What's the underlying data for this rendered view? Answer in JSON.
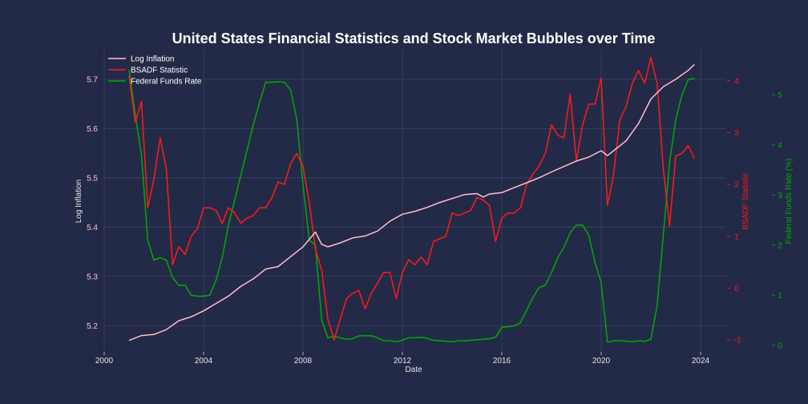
{
  "chart_data": {
    "type": "line",
    "title": "United States Financial Statistics and Stock Market Bubbles over Time",
    "xlabel": "Date",
    "xlim": [
      2000,
      2025
    ],
    "x_ticks": [
      "2000",
      "2004",
      "2008",
      "2012",
      "2016",
      "2020",
      "2024"
    ],
    "grid": true,
    "legend_position": "top-left",
    "axes": {
      "left": {
        "label": "Log Inflation",
        "ylim": [
          5.15,
          5.76
        ],
        "ticks": [
          "5.2",
          "5.3",
          "5.4",
          "5.5",
          "5.6",
          "5.7"
        ],
        "color": "#ffc0cb"
      },
      "right1": {
        "label": "BSADF Statistic",
        "ylim": [
          -1.2,
          4.6
        ],
        "ticks": [
          "−1",
          "0",
          "1",
          "2",
          "3",
          "4"
        ],
        "color": "#ff1a1a"
      },
      "right2": {
        "label": "Federal Funds Rate (%)",
        "ylim": [
          -0.1,
          5.9
        ],
        "ticks": [
          "0",
          "1",
          "2",
          "3",
          "4",
          "5"
        ],
        "color": "#00aa00"
      }
    },
    "series": [
      {
        "name": "Log Inflation",
        "axis": "left",
        "color": "#ffc0cb",
        "points": [
          [
            2001.0,
            5.17
          ],
          [
            2001.5,
            5.18
          ],
          [
            2002.0,
            5.182
          ],
          [
            2002.5,
            5.192
          ],
          [
            2003.0,
            5.21
          ],
          [
            2003.5,
            5.218
          ],
          [
            2004.0,
            5.23
          ],
          [
            2004.5,
            5.245
          ],
          [
            2005.0,
            5.26
          ],
          [
            2005.5,
            5.28
          ],
          [
            2006.0,
            5.295
          ],
          [
            2006.5,
            5.315
          ],
          [
            2007.0,
            5.32
          ],
          [
            2007.5,
            5.34
          ],
          [
            2008.0,
            5.36
          ],
          [
            2008.5,
            5.39
          ],
          [
            2008.75,
            5.365
          ],
          [
            2009.0,
            5.36
          ],
          [
            2009.5,
            5.368
          ],
          [
            2010.0,
            5.378
          ],
          [
            2010.5,
            5.382
          ],
          [
            2011.0,
            5.392
          ],
          [
            2011.5,
            5.412
          ],
          [
            2012.0,
            5.426
          ],
          [
            2012.5,
            5.432
          ],
          [
            2013.0,
            5.44
          ],
          [
            2013.5,
            5.45
          ],
          [
            2014.0,
            5.458
          ],
          [
            2014.5,
            5.466
          ],
          [
            2015.0,
            5.468
          ],
          [
            2015.25,
            5.461
          ],
          [
            2015.5,
            5.467
          ],
          [
            2016.0,
            5.47
          ],
          [
            2016.5,
            5.48
          ],
          [
            2017.0,
            5.49
          ],
          [
            2017.5,
            5.5
          ],
          [
            2018.0,
            5.512
          ],
          [
            2018.5,
            5.523
          ],
          [
            2019.0,
            5.534
          ],
          [
            2019.5,
            5.542
          ],
          [
            2020.0,
            5.555
          ],
          [
            2020.25,
            5.545
          ],
          [
            2020.5,
            5.555
          ],
          [
            2021.0,
            5.575
          ],
          [
            2021.5,
            5.61
          ],
          [
            2022.0,
            5.66
          ],
          [
            2022.5,
            5.685
          ],
          [
            2023.0,
            5.7
          ],
          [
            2023.5,
            5.718
          ],
          [
            2023.75,
            5.73
          ]
        ]
      },
      {
        "name": "BSADF Statistic",
        "axis": "right1",
        "color": "#ff1a1a",
        "points": [
          [
            2001.0,
            4.1
          ],
          [
            2001.25,
            3.2
          ],
          [
            2001.5,
            3.6
          ],
          [
            2001.75,
            1.55
          ],
          [
            2002.0,
            2.1
          ],
          [
            2002.25,
            2.9
          ],
          [
            2002.5,
            2.3
          ],
          [
            2002.75,
            0.45
          ],
          [
            2003.0,
            0.8
          ],
          [
            2003.25,
            0.65
          ],
          [
            2003.5,
            1.0
          ],
          [
            2003.75,
            1.15
          ],
          [
            2004.0,
            1.55
          ],
          [
            2004.25,
            1.55
          ],
          [
            2004.5,
            1.5
          ],
          [
            2004.75,
            1.25
          ],
          [
            2005.0,
            1.55
          ],
          [
            2005.25,
            1.45
          ],
          [
            2005.5,
            1.25
          ],
          [
            2005.75,
            1.35
          ],
          [
            2006.0,
            1.4
          ],
          [
            2006.25,
            1.55
          ],
          [
            2006.5,
            1.55
          ],
          [
            2006.75,
            1.75
          ],
          [
            2007.0,
            2.05
          ],
          [
            2007.25,
            2.0
          ],
          [
            2007.5,
            2.4
          ],
          [
            2007.75,
            2.6
          ],
          [
            2008.0,
            2.35
          ],
          [
            2008.25,
            1.65
          ],
          [
            2008.5,
            0.75
          ],
          [
            2008.75,
            0.35
          ],
          [
            2009.0,
            -0.6
          ],
          [
            2009.25,
            -1.0
          ],
          [
            2009.5,
            -0.6
          ],
          [
            2009.75,
            -0.2
          ],
          [
            2010.0,
            -0.1
          ],
          [
            2010.25,
            -0.05
          ],
          [
            2010.5,
            -0.4
          ],
          [
            2010.75,
            -0.1
          ],
          [
            2011.0,
            0.1
          ],
          [
            2011.25,
            0.3
          ],
          [
            2011.5,
            0.3
          ],
          [
            2011.75,
            -0.2
          ],
          [
            2012.0,
            0.3
          ],
          [
            2012.25,
            0.55
          ],
          [
            2012.5,
            0.45
          ],
          [
            2012.75,
            0.6
          ],
          [
            2013.0,
            0.45
          ],
          [
            2013.25,
            0.9
          ],
          [
            2013.5,
            0.95
          ],
          [
            2013.75,
            1.0
          ],
          [
            2014.0,
            1.45
          ],
          [
            2014.25,
            1.4
          ],
          [
            2014.5,
            1.45
          ],
          [
            2014.75,
            1.5
          ],
          [
            2015.0,
            1.75
          ],
          [
            2015.25,
            1.7
          ],
          [
            2015.5,
            1.6
          ],
          [
            2015.75,
            0.9
          ],
          [
            2016.0,
            1.35
          ],
          [
            2016.25,
            1.45
          ],
          [
            2016.5,
            1.45
          ],
          [
            2016.75,
            1.55
          ],
          [
            2017.0,
            2.0
          ],
          [
            2017.25,
            2.2
          ],
          [
            2017.5,
            2.35
          ],
          [
            2017.75,
            2.6
          ],
          [
            2018.0,
            3.15
          ],
          [
            2018.25,
            2.95
          ],
          [
            2018.5,
            2.9
          ],
          [
            2018.75,
            3.75
          ],
          [
            2019.0,
            2.45
          ],
          [
            2019.25,
            3.15
          ],
          [
            2019.5,
            3.55
          ],
          [
            2019.75,
            3.55
          ],
          [
            2020.0,
            4.05
          ],
          [
            2020.25,
            1.6
          ],
          [
            2020.5,
            2.2
          ],
          [
            2020.75,
            3.25
          ],
          [
            2021.0,
            3.5
          ],
          [
            2021.25,
            3.95
          ],
          [
            2021.5,
            4.2
          ],
          [
            2021.75,
            3.95
          ],
          [
            2022.0,
            4.45
          ],
          [
            2022.25,
            3.95
          ],
          [
            2022.5,
            2.3
          ],
          [
            2022.75,
            1.2
          ],
          [
            2023.0,
            2.55
          ],
          [
            2023.25,
            2.6
          ],
          [
            2023.5,
            2.75
          ],
          [
            2023.75,
            2.5
          ]
        ]
      },
      {
        "name": "Federal Funds Rate",
        "axis": "right2",
        "color": "#00aa00",
        "points": [
          [
            2001.0,
            5.5
          ],
          [
            2001.25,
            4.6
          ],
          [
            2001.5,
            3.8
          ],
          [
            2001.75,
            2.1
          ],
          [
            2002.0,
            1.7
          ],
          [
            2002.25,
            1.75
          ],
          [
            2002.5,
            1.7
          ],
          [
            2002.75,
            1.35
          ],
          [
            2003.0,
            1.2
          ],
          [
            2003.25,
            1.2
          ],
          [
            2003.5,
            1.0
          ],
          [
            2003.75,
            0.98
          ],
          [
            2004.0,
            0.98
          ],
          [
            2004.25,
            1.0
          ],
          [
            2004.5,
            1.3
          ],
          [
            2004.75,
            1.75
          ],
          [
            2005.0,
            2.4
          ],
          [
            2005.25,
            2.9
          ],
          [
            2005.5,
            3.4
          ],
          [
            2005.75,
            3.9
          ],
          [
            2006.0,
            4.4
          ],
          [
            2006.25,
            4.85
          ],
          [
            2006.5,
            5.25
          ],
          [
            2006.75,
            5.25
          ],
          [
            2007.0,
            5.26
          ],
          [
            2007.25,
            5.25
          ],
          [
            2007.5,
            5.1
          ],
          [
            2007.75,
            4.5
          ],
          [
            2008.0,
            3.2
          ],
          [
            2008.25,
            2.1
          ],
          [
            2008.5,
            2.0
          ],
          [
            2008.75,
            0.5
          ],
          [
            2009.0,
            0.15
          ],
          [
            2009.25,
            0.18
          ],
          [
            2009.5,
            0.15
          ],
          [
            2009.75,
            0.12
          ],
          [
            2010.0,
            0.13
          ],
          [
            2010.25,
            0.19
          ],
          [
            2010.5,
            0.19
          ],
          [
            2010.75,
            0.19
          ],
          [
            2011.0,
            0.15
          ],
          [
            2011.25,
            0.09
          ],
          [
            2011.5,
            0.09
          ],
          [
            2011.75,
            0.07
          ],
          [
            2012.0,
            0.1
          ],
          [
            2012.25,
            0.15
          ],
          [
            2012.5,
            0.15
          ],
          [
            2012.75,
            0.16
          ],
          [
            2013.0,
            0.14
          ],
          [
            2013.25,
            0.1
          ],
          [
            2013.5,
            0.09
          ],
          [
            2013.75,
            0.08
          ],
          [
            2014.0,
            0.07
          ],
          [
            2014.25,
            0.09
          ],
          [
            2014.5,
            0.09
          ],
          [
            2014.75,
            0.1
          ],
          [
            2015.0,
            0.11
          ],
          [
            2015.25,
            0.12
          ],
          [
            2015.5,
            0.13
          ],
          [
            2015.75,
            0.16
          ],
          [
            2016.0,
            0.36
          ],
          [
            2016.25,
            0.37
          ],
          [
            2016.5,
            0.39
          ],
          [
            2016.75,
            0.45
          ],
          [
            2017.0,
            0.7
          ],
          [
            2017.25,
            0.95
          ],
          [
            2017.5,
            1.15
          ],
          [
            2017.75,
            1.2
          ],
          [
            2018.0,
            1.45
          ],
          [
            2018.25,
            1.75
          ],
          [
            2018.5,
            1.95
          ],
          [
            2018.75,
            2.25
          ],
          [
            2019.0,
            2.4
          ],
          [
            2019.25,
            2.4
          ],
          [
            2019.5,
            2.2
          ],
          [
            2019.75,
            1.65
          ],
          [
            2020.0,
            1.25
          ],
          [
            2020.25,
            0.06
          ],
          [
            2020.5,
            0.09
          ],
          [
            2020.75,
            0.09
          ],
          [
            2021.0,
            0.08
          ],
          [
            2021.25,
            0.07
          ],
          [
            2021.5,
            0.09
          ],
          [
            2021.75,
            0.08
          ],
          [
            2022.0,
            0.12
          ],
          [
            2022.25,
            0.8
          ],
          [
            2022.5,
            2.2
          ],
          [
            2022.75,
            3.65
          ],
          [
            2023.0,
            4.5
          ],
          [
            2023.25,
            5.0
          ],
          [
            2023.5,
            5.3
          ],
          [
            2023.75,
            5.33
          ]
        ]
      }
    ]
  }
}
